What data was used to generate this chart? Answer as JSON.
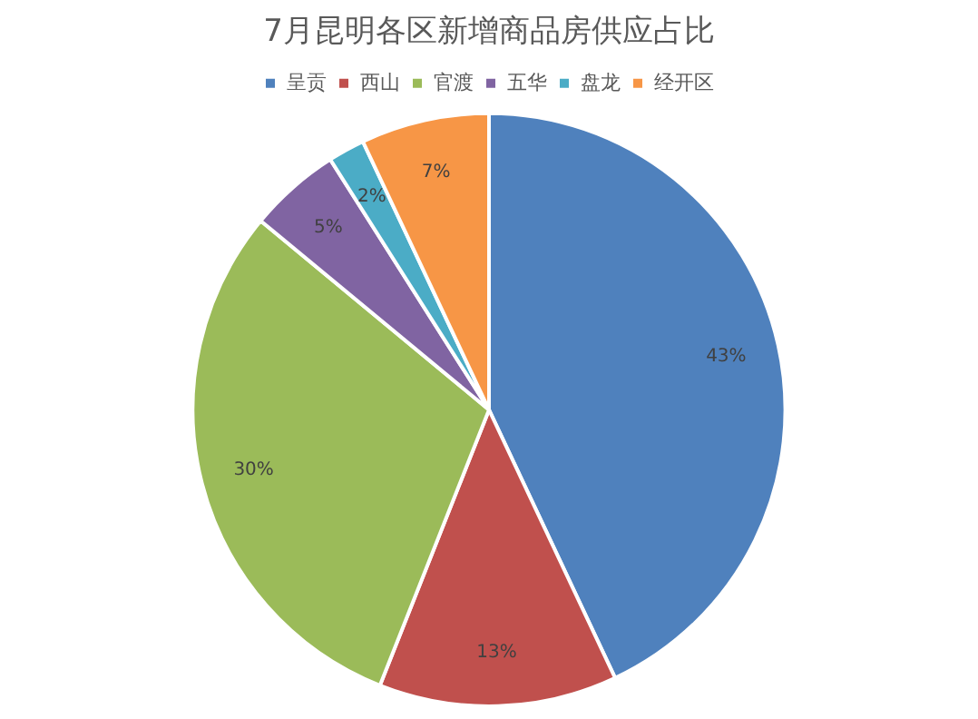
{
  "chart_data": {
    "type": "pie",
    "title": "7月昆明各区新增商品房供应占比",
    "categories": [
      "呈贡",
      "西山",
      "官渡",
      "五华",
      "盘龙",
      "经开区"
    ],
    "values": [
      43,
      13,
      30,
      5,
      2,
      7
    ],
    "value_labels": [
      "43%",
      "13%",
      "30%",
      "5%",
      "2%",
      "7%"
    ],
    "colors": [
      "#4f81bd",
      "#c0504d",
      "#9bbb59",
      "#8064a2",
      "#4bacc6",
      "#f79646"
    ],
    "legend": "top"
  }
}
